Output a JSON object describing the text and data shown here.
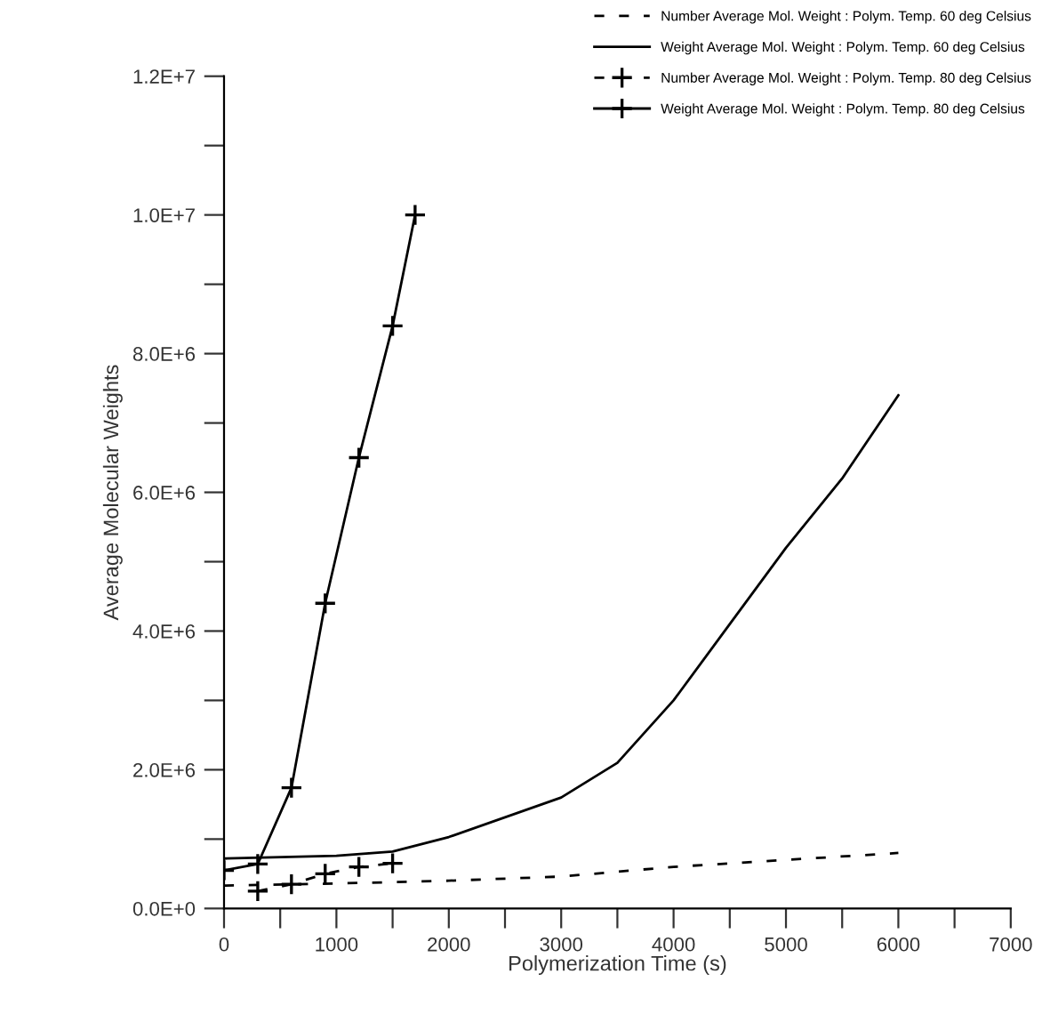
{
  "chart_data": {
    "type": "line",
    "xlabel": "Polymerization Time (s)",
    "ylabel": "Average Molecular Weights",
    "xlim": [
      0,
      7000
    ],
    "ylim": [
      0,
      12000000
    ],
    "xticks": [
      0,
      {
        "value": 500,
        "label": null
      },
      1000,
      {
        "value": 1500,
        "label": null
      },
      2000,
      {
        "value": 2500,
        "label": null
      },
      3000,
      {
        "value": 3500,
        "label": null
      },
      4000,
      {
        "value": 4500,
        "label": null
      },
      5000,
      {
        "value": 5500,
        "label": null
      },
      6000,
      {
        "value": 6500,
        "label": null
      },
      7000
    ],
    "yticks": [
      {
        "value": 0,
        "label": "0.0E+0"
      },
      {
        "value": 1000000,
        "label": null
      },
      {
        "value": 2000000,
        "label": "2.0E+6"
      },
      {
        "value": 3000000,
        "label": null
      },
      {
        "value": 4000000,
        "label": "4.0E+6"
      },
      {
        "value": 5000000,
        "label": null
      },
      {
        "value": 6000000,
        "label": "6.0E+6"
      },
      {
        "value": 7000000,
        "label": null
      },
      {
        "value": 8000000,
        "label": "8.0E+6"
      },
      {
        "value": 9000000,
        "label": null
      },
      {
        "value": 10000000,
        "label": "1.0E+7"
      },
      {
        "value": 11000000,
        "label": null
      },
      {
        "value": 12000000,
        "label": "1.2E+7"
      }
    ],
    "grid": false,
    "legend": "top right",
    "series": [
      {
        "name": "Number Average Mol. Weight : Polym. Temp. 60 deg Celsius",
        "color": "#000000",
        "line_style": "dashed",
        "marker": "none",
        "x": [
          0,
          1000,
          2000,
          3000,
          4000,
          5000,
          6000
        ],
        "values": [
          330000,
          360000,
          400000,
          460000,
          600000,
          700000,
          800000
        ]
      },
      {
        "name": "Weight Average Mol. Weight : Polym. Temp. 60 deg Celsius",
        "color": "#000000",
        "line_style": "solid",
        "marker": "none",
        "x": [
          0,
          1000,
          1500,
          2000,
          3000,
          3500,
          4000,
          4500,
          5000,
          5500,
          6000
        ],
        "values": [
          720000,
          760000,
          820000,
          1030000,
          1600000,
          2100000,
          3000000,
          4100000,
          5200000,
          6200000,
          7400000
        ]
      },
      {
        "name": "Number Average Mol. Weight : Polym. Temp. 80 deg Celsius",
        "color": "#000000",
        "line_style": "dashed",
        "marker": "cross",
        "x": [
          300,
          600,
          900,
          1200,
          1500
        ],
        "values": [
          250000,
          350000,
          500000,
          600000,
          650000
        ]
      },
      {
        "name": "Weight Average Mol. Weight : Polym. Temp. 80 deg Celsius",
        "color": "#000000",
        "line_style": "solid",
        "marker": "cross",
        "x": [
          0,
          300,
          600,
          900,
          1200,
          1500,
          1700
        ],
        "values": [
          550000,
          640000,
          1740000,
          4400000,
          6500000,
          8400000,
          10000000
        ]
      }
    ]
  }
}
